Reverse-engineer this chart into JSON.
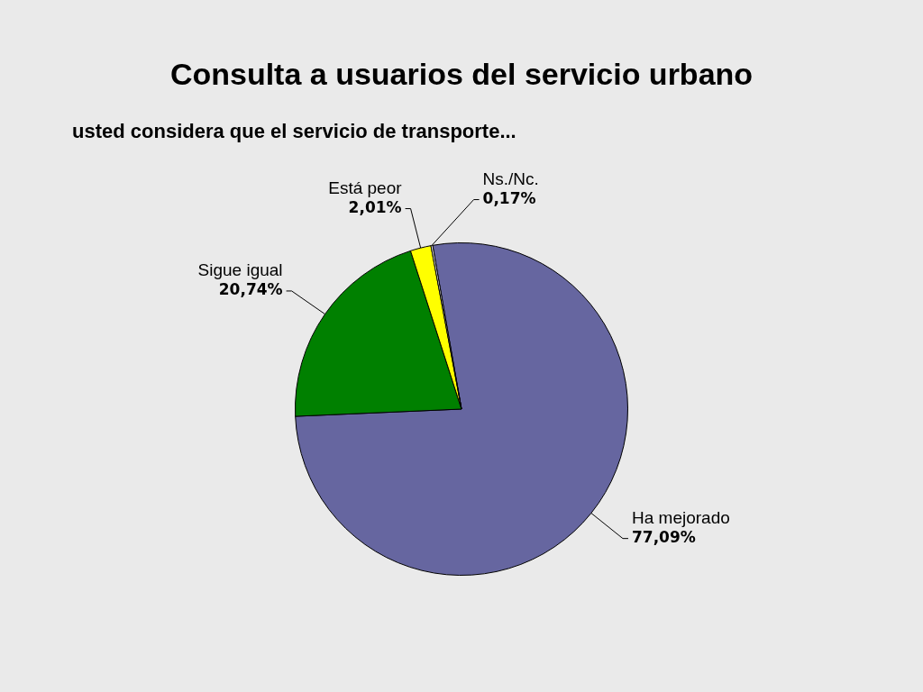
{
  "chart_data": {
    "type": "pie",
    "title": "Consulta a usuarios del servicio urbano",
    "subtitle": "usted considera que el servicio de transporte...",
    "categories": [
      "Ha mejorado",
      "Sigue igual",
      "Está peor",
      "Ns./Nc."
    ],
    "values": [
      77.09,
      20.74,
      2.01,
      0.17
    ],
    "colors": [
      "#6666a0",
      "#008000",
      "#ffff00",
      "#ffffff"
    ],
    "value_labels": [
      "77,09%",
      "20,74%",
      "2,01%",
      "0,17%"
    ],
    "legend": false
  }
}
